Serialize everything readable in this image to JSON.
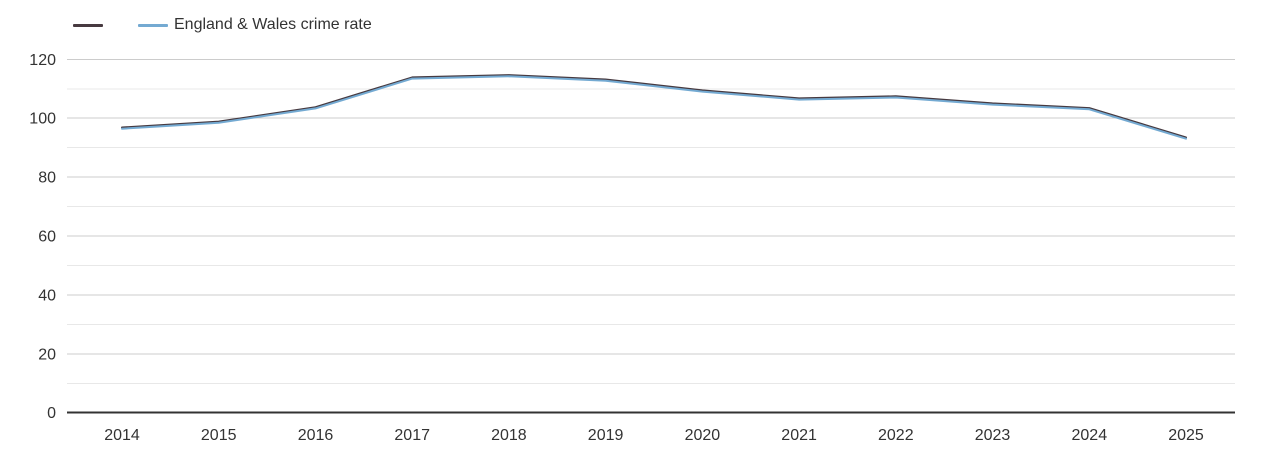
{
  "chart_data": {
    "type": "line",
    "categories": [
      "2014",
      "2015",
      "2016",
      "2017",
      "2018",
      "2019",
      "2020",
      "2021",
      "2022",
      "2023",
      "2024",
      "2025"
    ],
    "series": [
      {
        "name": "",
        "color": "#473a40",
        "values": [
          96.6,
          98.6,
          103.5,
          113.6,
          114.4,
          112.9,
          109.2,
          106.5,
          107.2,
          104.8,
          103.2,
          93.2
        ]
      },
      {
        "name": "England & Wales crime rate",
        "color": "#74aad2",
        "values": [
          96.6,
          98.6,
          103.5,
          113.6,
          114.4,
          112.9,
          109.2,
          106.5,
          107.2,
          104.8,
          103.2,
          93.2
        ]
      }
    ],
    "title": "",
    "xlabel": "",
    "ylabel": "",
    "ylim": [
      0,
      120
    ],
    "y_major_ticks": [
      0,
      20,
      40,
      60,
      80,
      100,
      120
    ],
    "y_minor_step": 10,
    "grid": true,
    "legend_position": "top-left",
    "colors": {
      "major_grid": "#cccccc",
      "minor_grid": "#e8e8e8",
      "axis_line": "#333333",
      "tick_text": "#333333"
    }
  }
}
